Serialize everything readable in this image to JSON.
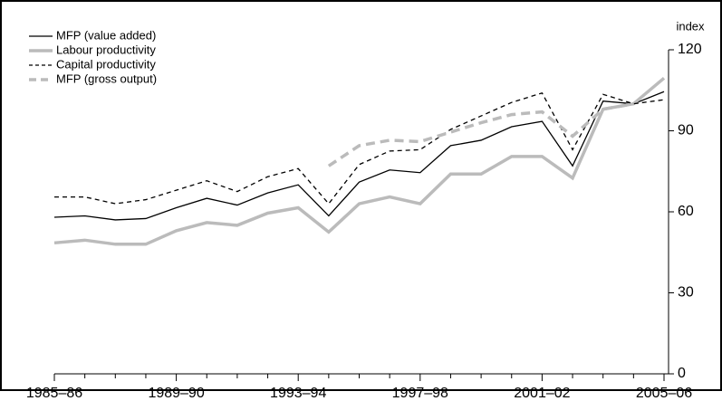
{
  "chart_data": {
    "type": "line",
    "y_label": "index",
    "categories": [
      "1985–86",
      null,
      null,
      null,
      "1989–90",
      null,
      null,
      null,
      "1993–94",
      null,
      null,
      null,
      "1997–98",
      null,
      null,
      null,
      "2001–02",
      null,
      null,
      null,
      "2005–06"
    ],
    "series": [
      {
        "name": "MFP (value added)",
        "color": "#000000",
        "dashed": false,
        "values": [
          58,
          58.5,
          57,
          57.5,
          61.5,
          65,
          62.5,
          67,
          70,
          58.5,
          71,
          75.5,
          74.5,
          84.5,
          86.5,
          91.5,
          93.5,
          77,
          101,
          100,
          104.5
        ]
      },
      {
        "name": "Labour productivity",
        "color": "#bbbbbb",
        "dashed": false,
        "values": [
          48.5,
          49.5,
          48,
          48,
          53,
          56,
          55,
          59.5,
          61.5,
          52.5,
          63,
          65.5,
          63,
          74,
          74,
          80.5,
          80.5,
          72.5,
          98,
          100,
          109.5
        ]
      },
      {
        "name": "Capital productivity",
        "color": "#000000",
        "dashed": true,
        "values": [
          65.5,
          65.5,
          63,
          64.5,
          68,
          71.5,
          67.5,
          73,
          76,
          63,
          77.5,
          82.5,
          83,
          90.5,
          95.5,
          100.5,
          104,
          83,
          103.5,
          100,
          101.5
        ]
      },
      {
        "name": "MFP (gross output)",
        "color": "#bbbbbb",
        "dashed": true,
        "values": [
          null,
          null,
          null,
          null,
          null,
          null,
          null,
          null,
          null,
          77,
          84.5,
          86.5,
          86,
          89.5,
          93,
          96,
          97,
          88,
          98,
          100,
          null
        ]
      }
    ],
    "ylim": [
      0,
      120
    ],
    "yticks": [
      0,
      30,
      60,
      90,
      120
    ]
  }
}
